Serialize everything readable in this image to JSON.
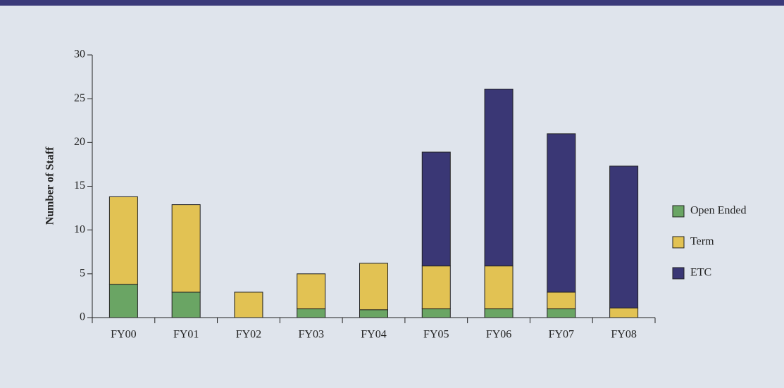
{
  "chart_data": {
    "type": "stacked_bar",
    "y_label": "Number of Staff",
    "categories": [
      "FY00",
      "FY01",
      "FY02",
      "FY03",
      "FY04",
      "FY05",
      "FY06",
      "FY07",
      "FY08"
    ],
    "series": [
      {
        "name": "Open Ended",
        "color": "#6aa564",
        "values": [
          3.8,
          2.9,
          0,
          1,
          0.9,
          1,
          1,
          1,
          0
        ]
      },
      {
        "name": "Term",
        "color": "#e2c253",
        "values": [
          10,
          10,
          2.9,
          4,
          5.3,
          4.9,
          4.9,
          1.9,
          1.1
        ]
      },
      {
        "name": "ETC",
        "color": "#3a3775",
        "values": [
          0,
          0,
          0,
          0,
          0,
          13,
          20.2,
          18.1,
          16.2
        ]
      }
    ],
    "ylim": [
      0,
      30
    ],
    "yticks": [
      0,
      5,
      10,
      15,
      20,
      25,
      30
    ],
    "legend": "right"
  }
}
